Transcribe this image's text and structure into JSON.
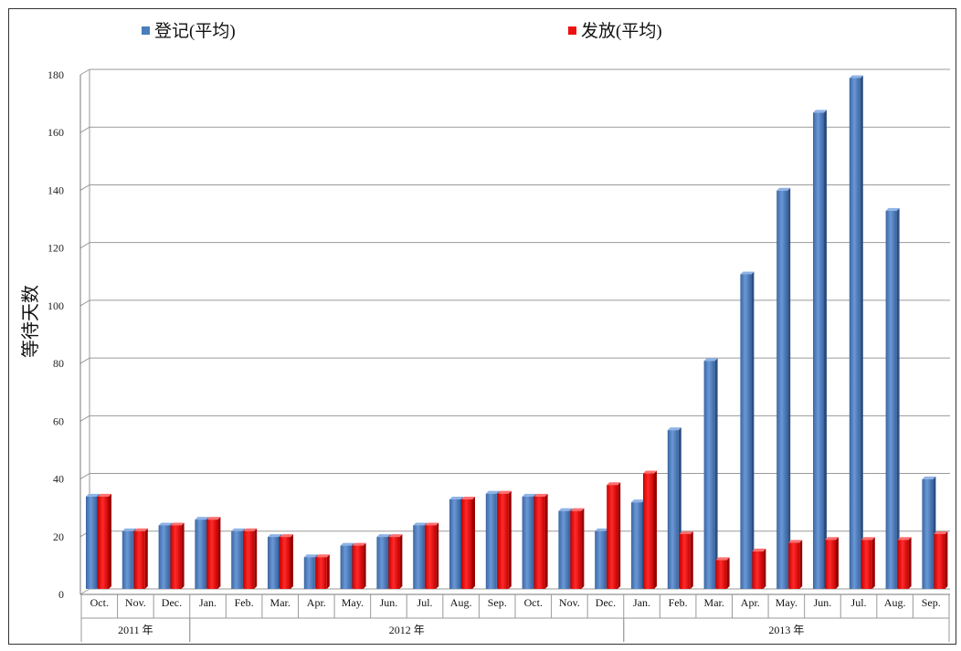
{
  "chart_data": {
    "type": "bar",
    "ylabel": "等待天数",
    "ylim": [
      0,
      180
    ],
    "yticks": [
      0,
      20,
      40,
      60,
      80,
      100,
      120,
      140,
      160,
      180
    ],
    "grid": true,
    "legend_position": "top",
    "categories": [
      "Oct.",
      "Nov.",
      "Dec.",
      "Jan.",
      "Feb.",
      "Mar.",
      "Apr.",
      "May.",
      "Jun.",
      "Jul.",
      "Aug.",
      "Sep.",
      "Oct.",
      "Nov.",
      "Dec.",
      "Jan.",
      "Feb.",
      "Mar.",
      "Apr.",
      "May.",
      "Jun.",
      "Jul.",
      "Aug.",
      "Sep."
    ],
    "groups": [
      {
        "label": "2011 年",
        "start": 0,
        "end": 2
      },
      {
        "label": "2012 年",
        "start": 3,
        "end": 14
      },
      {
        "label": "2013 年",
        "start": 15,
        "end": 23
      }
    ],
    "series": [
      {
        "name": "登记(平均)",
        "color": "#4a7ebb",
        "values": [
          32,
          20,
          22,
          24,
          20,
          18,
          11,
          15,
          18,
          22,
          31,
          33,
          32,
          27,
          20,
          30,
          55,
          79,
          109,
          138,
          165,
          177,
          131,
          38
        ]
      },
      {
        "name": "发放(平均)",
        "color": "#ee1111",
        "values": [
          32,
          20,
          22,
          24,
          20,
          18,
          11,
          15,
          18,
          22,
          31,
          33,
          32,
          27,
          36,
          40,
          19,
          10,
          13,
          16,
          17,
          17,
          17,
          19
        ]
      }
    ]
  }
}
